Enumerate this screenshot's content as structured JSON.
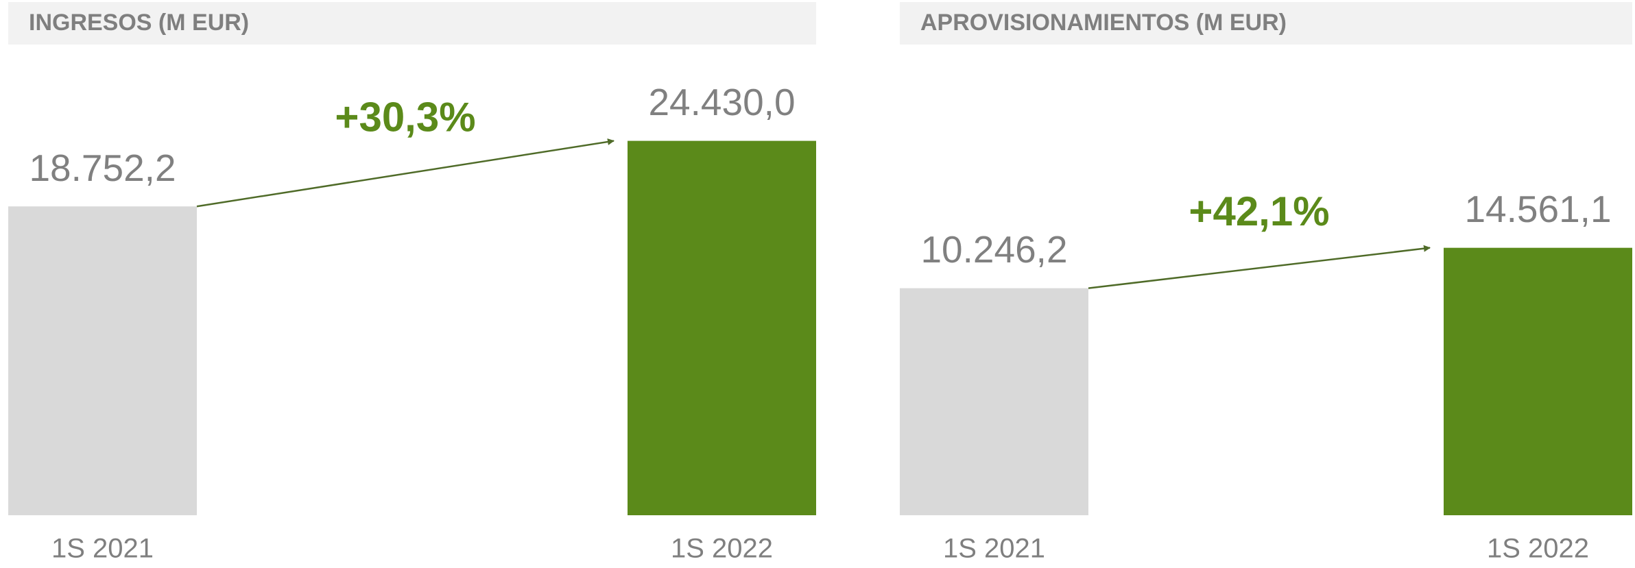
{
  "chart_data": [
    {
      "type": "bar",
      "title": "INGRESOS (M EUR)",
      "categories": [
        "1S 2021",
        "1S 2022"
      ],
      "values": [
        18752.2,
        24430.0
      ],
      "value_labels": [
        "18.752,2",
        "24.430,0"
      ],
      "colors": [
        "#d9d9d9",
        "#5b8a1a"
      ],
      "annotation": "+30,3%",
      "ylim": [
        -8000,
        28500
      ]
    },
    {
      "type": "bar",
      "title": "APROVISIONAMIENTOS (M EUR)",
      "categories": [
        "1S 2021",
        "1S 2022"
      ],
      "values": [
        10246.2,
        14561.1
      ],
      "value_labels": [
        "10.246,2",
        "14.561,1"
      ],
      "colors": [
        "#d9d9d9",
        "#5b8a1a"
      ],
      "annotation": "+42,1%",
      "ylim": [
        -14000,
        31000
      ]
    }
  ]
}
